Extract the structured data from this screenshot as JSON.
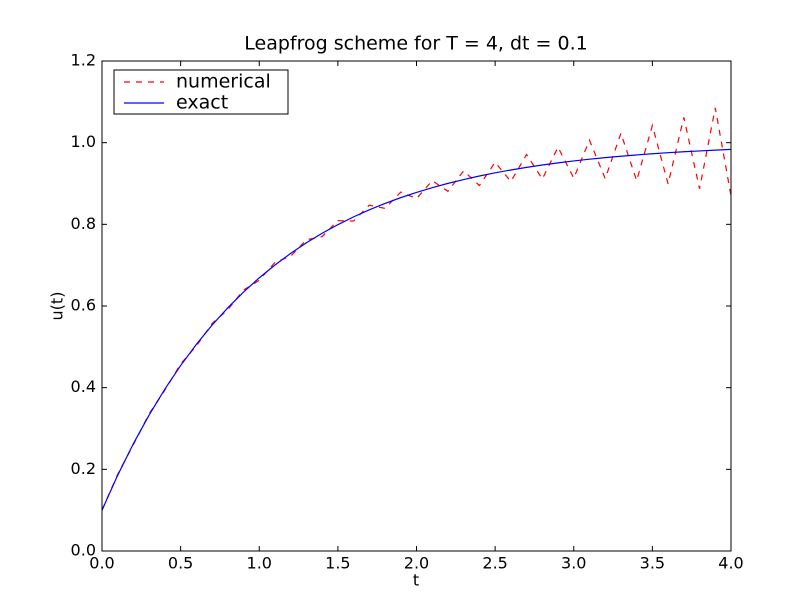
{
  "chart_data": {
    "type": "line",
    "title": "Leapfrog scheme for T = 4, dt = 0.1",
    "xlabel": "t",
    "ylabel": "u(t)",
    "x": [
      0.0,
      0.1,
      0.2,
      0.3,
      0.4,
      0.5,
      0.6,
      0.7,
      0.8,
      0.9,
      1.0,
      1.1,
      1.2,
      1.3,
      1.4,
      1.5,
      1.6,
      1.7,
      1.8,
      1.9,
      2.0,
      2.1,
      2.2,
      2.3,
      2.4,
      2.5,
      2.6,
      2.7,
      2.8,
      2.9,
      3.0,
      3.1,
      3.2,
      3.3,
      3.4,
      3.5,
      3.6,
      3.7,
      3.8,
      3.9,
      4.0
    ],
    "series": [
      {
        "name": "numerical",
        "color": "#ff0000",
        "linestyle": "dashed",
        "values": [
          0.1,
          0.188,
          0.261,
          0.336,
          0.394,
          0.458,
          0.502,
          0.557,
          0.591,
          0.639,
          0.663,
          0.707,
          0.722,
          0.762,
          0.77,
          0.809,
          0.808,
          0.847,
          0.839,
          0.879,
          0.863,
          0.907,
          0.881,
          0.931,
          0.895,
          0.952,
          0.905,
          0.971,
          0.911,
          0.989,
          0.913,
          1.006,
          0.912,
          1.023,
          0.907,
          1.042,
          0.899,
          1.062,
          0.887,
          1.085,
          0.87
        ]
      },
      {
        "name": "exact",
        "color": "#0000ff",
        "linestyle": "solid",
        "values": [
          0.1,
          0.1857,
          0.2632,
          0.3333,
          0.3967,
          0.4542,
          0.5061,
          0.5531,
          0.5956,
          0.6341,
          0.6689,
          0.7004,
          0.7289,
          0.7548,
          0.7781,
          0.7992,
          0.8183,
          0.8356,
          0.8512,
          0.8654,
          0.8782,
          0.8898,
          0.9003,
          0.9097,
          0.9184,
          0.9261,
          0.9331,
          0.9395,
          0.9453,
          0.9505,
          0.9552,
          0.9595,
          0.9633,
          0.9668,
          0.9699,
          0.9728,
          0.9754,
          0.9778,
          0.9798,
          0.9818,
          0.9835
        ]
      }
    ],
    "xlim": [
      0,
      4
    ],
    "ylim": [
      0,
      1.2
    ],
    "xticks": [
      {
        "value": 0,
        "label": "0.0"
      },
      {
        "value": 0.5,
        "label": "0.5"
      },
      {
        "value": 1,
        "label": "1.0"
      },
      {
        "value": 1.5,
        "label": "1.5"
      },
      {
        "value": 2,
        "label": "2.0"
      },
      {
        "value": 2.5,
        "label": "2.5"
      },
      {
        "value": 3,
        "label": "3.0"
      },
      {
        "value": 3.5,
        "label": "3.5"
      },
      {
        "value": 4,
        "label": "4.0"
      }
    ],
    "yticks": [
      {
        "value": 0,
        "label": "0.0"
      },
      {
        "value": 0.2,
        "label": "0.2"
      },
      {
        "value": 0.4,
        "label": "0.4"
      },
      {
        "value": 0.6,
        "label": "0.6"
      },
      {
        "value": 0.8,
        "label": "0.8"
      },
      {
        "value": 1,
        "label": "1.0"
      },
      {
        "value": 1.2,
        "label": "1.2"
      }
    ],
    "legend": "upper left",
    "grid": false
  }
}
